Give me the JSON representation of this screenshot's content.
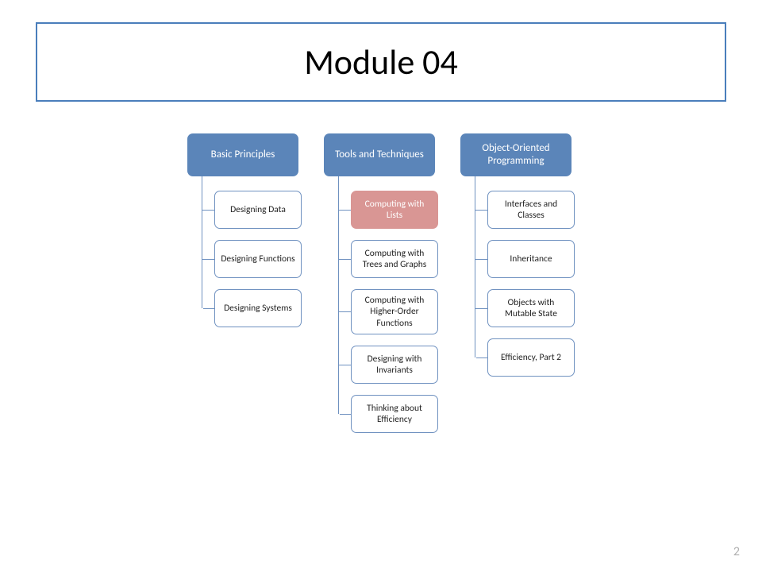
{
  "slide": {
    "title": "Module 04",
    "page_number": "2",
    "title_border_color": "#4a7ebb",
    "title_fontsize": 44,
    "header_bg": "#5b85b9",
    "header_text_color": "#ffffff",
    "connector_color": "#6f91c0",
    "child_border_color": "#6f91c0",
    "child_default_bg": "#ffffff",
    "highlight_bg": "#d99694",
    "columns": [
      {
        "header": "Basic Principles",
        "children": [
          {
            "label": "Designing Data"
          },
          {
            "label": "Designing Functions"
          },
          {
            "label": "Designing Systems"
          }
        ]
      },
      {
        "header": "Tools and Techniques",
        "children": [
          {
            "label": "Computing with Lists",
            "highlight": true
          },
          {
            "label": "Computing with Trees and Graphs"
          },
          {
            "label": "Computing with Higher-Order Functions"
          },
          {
            "label": "Designing with Invariants"
          },
          {
            "label": "Thinking about Efficiency"
          }
        ]
      },
      {
        "header": "Object-Oriented Programming",
        "children": [
          {
            "label": "Interfaces and Classes"
          },
          {
            "label": "Inheritance"
          },
          {
            "label": "Objects with Mutable State"
          },
          {
            "label": "Efficiency, Part 2"
          }
        ]
      }
    ]
  }
}
